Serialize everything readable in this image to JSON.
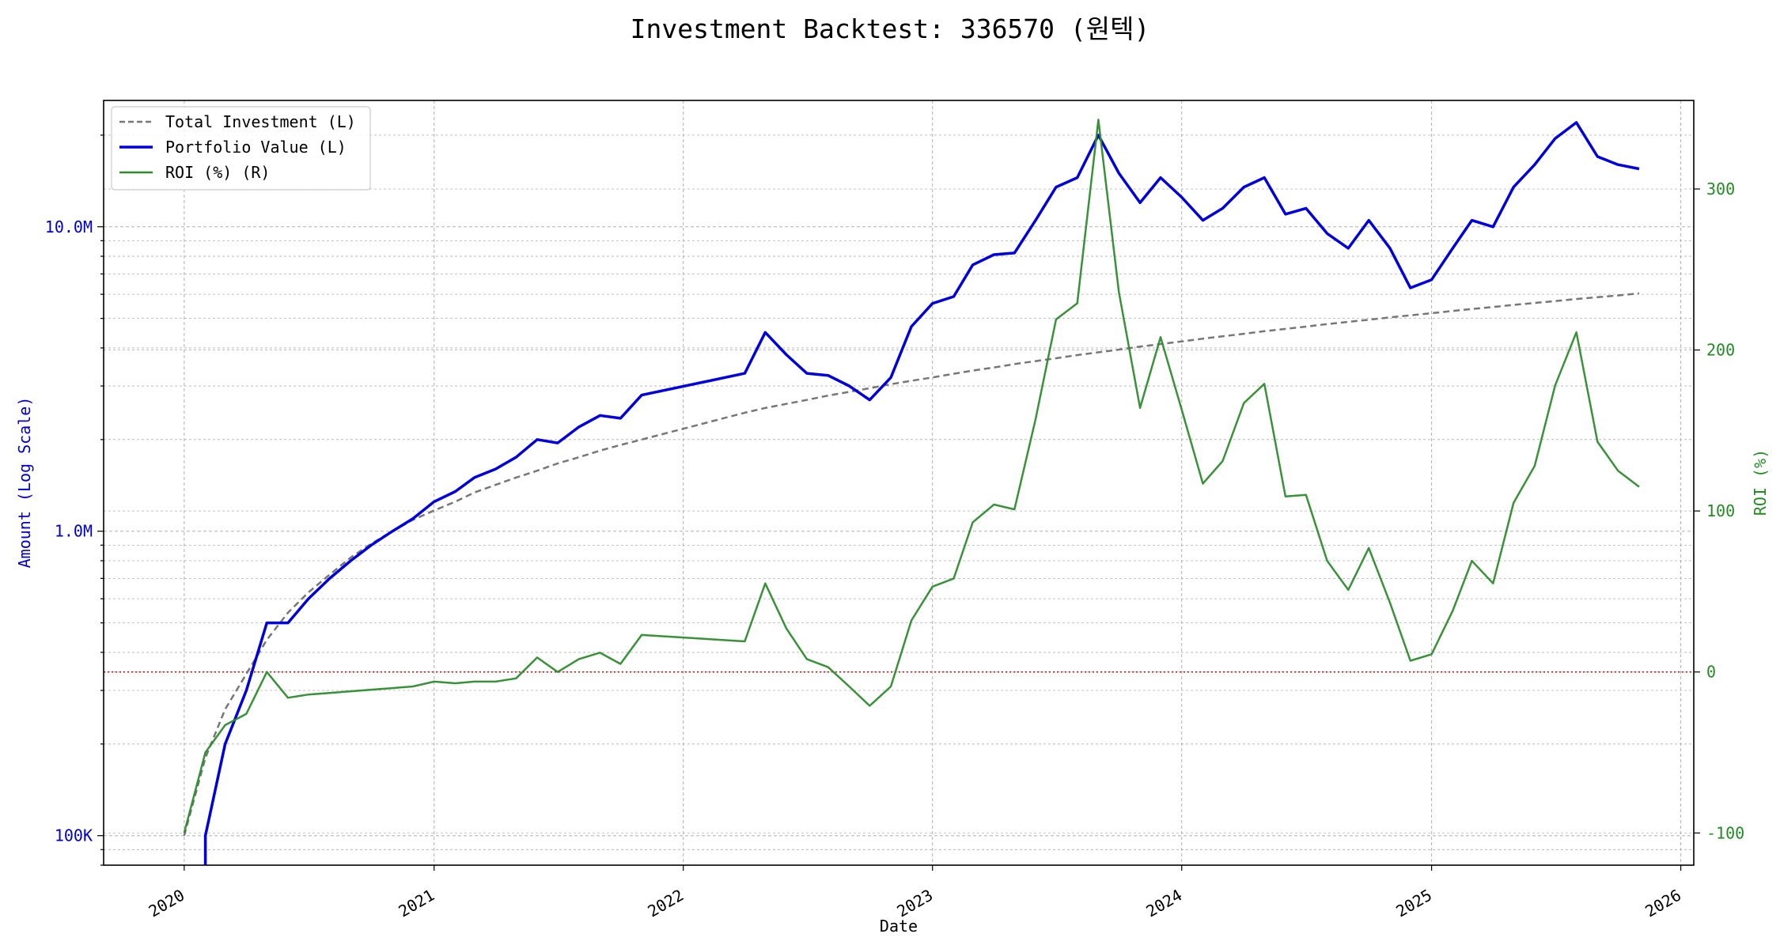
{
  "colors": {
    "portfolio": "#0000dd",
    "investment": "#777777",
    "roi": "#2e8b2e",
    "zero_line": "#b22222",
    "left_axis_text": "#0000cc",
    "right_axis_text": "#228b22",
    "grid": "#b0b0b0"
  },
  "chart_data": {
    "type": "line",
    "title": "Investment Backtest: 336570 (원텍)",
    "xlabel": "Date",
    "ylabel_left": "Amount (Log Scale)",
    "ylabel_right": "ROI (%)",
    "left_scale": "log",
    "left_ylim": [
      80000,
      26000000
    ],
    "right_ylim": [
      -120,
      355
    ],
    "xlim": [
      "2019-09-05",
      "2026-01-20"
    ],
    "grid": true,
    "legend_position": "upper-left",
    "x_ticks": [
      "2020",
      "2021",
      "2022",
      "2023",
      "2024",
      "2025",
      "2026"
    ],
    "left_ticks": [
      "100K",
      "1.0M",
      "10.0M"
    ],
    "right_ticks": [
      "-100",
      "0",
      "100",
      "200",
      "300"
    ],
    "x": [
      "2020-01",
      "2020-02",
      "2020-03",
      "2020-04",
      "2020-05",
      "2020-06",
      "2020-07",
      "2020-08",
      "2020-09",
      "2020-10",
      "2020-11",
      "2020-12",
      "2021-01",
      "2021-02",
      "2021-03",
      "2021-04",
      "2021-05",
      "2021-06",
      "2021-07",
      "2021-08",
      "2021-09",
      "2021-10",
      "2021-11",
      "2022-04",
      "2022-05",
      "2022-06",
      "2022-07",
      "2022-08",
      "2022-09",
      "2022-10",
      "2022-11",
      "2022-12",
      "2023-01",
      "2023-02",
      "2023-03",
      "2023-04",
      "2023-05",
      "2023-06",
      "2023-07",
      "2023-08",
      "2023-09",
      "2023-10",
      "2023-11",
      "2023-12",
      "2024-01",
      "2024-02",
      "2024-03",
      "2024-04",
      "2024-05",
      "2024-06",
      "2024-07",
      "2024-08",
      "2024-09",
      "2024-10",
      "2024-11",
      "2024-12",
      "2025-01",
      "2025-02",
      "2025-03",
      "2025-04",
      "2025-05",
      "2025-06",
      "2025-07",
      "2025-08",
      "2025-09",
      "2025-10",
      "2025-11"
    ],
    "series": [
      {
        "name": "Total Investment (L)",
        "axis": "left",
        "style": "dashed",
        "values": [
          100000,
          180000,
          260000,
          340000,
          440000,
          540000,
          630000,
          720000,
          820000,
          910000,
          1000000,
          1090000,
          1170000,
          1250000,
          1340000,
          1420000,
          1500000,
          1580000,
          1670000,
          1750000,
          1840000,
          1920000,
          2000000,
          2450000,
          2540000,
          2620000,
          2700000,
          2790000,
          2870000,
          2950000,
          3040000,
          3120000,
          3200000,
          3290000,
          3370000,
          3450000,
          3540000,
          3620000,
          3700000,
          3790000,
          3870000,
          3950000,
          4040000,
          4120000,
          4200000,
          4290000,
          4370000,
          4450000,
          4540000,
          4620000,
          4700000,
          4790000,
          4870000,
          4950000,
          5040000,
          5120000,
          5200000,
          5290000,
          5370000,
          5450000,
          5540000,
          5620000,
          5700000,
          5790000,
          5870000,
          5950000,
          6040000
        ]
      },
      {
        "name": "Portfolio Value (L)",
        "axis": "left",
        "style": "solid",
        "values": [
          null,
          100000,
          200000,
          300000,
          500000,
          500000,
          600000,
          700000,
          800000,
          900000,
          1000000,
          1100000,
          1250000,
          1350000,
          1500000,
          1600000,
          1750000,
          2000000,
          1950000,
          2200000,
          2400000,
          2350000,
          2800000,
          3300000,
          4500000,
          3800000,
          3300000,
          3250000,
          3000000,
          2700000,
          3200000,
          4700000,
          5600000,
          5900000,
          7500000,
          8100000,
          8200000,
          10500000,
          13500000,
          14500000,
          20000000,
          15000000,
          12000000,
          14500000,
          12500000,
          10500000,
          11500000,
          13500000,
          14500000,
          11000000,
          11500000,
          9500000,
          8500000,
          10500000,
          8500000,
          6300000,
          6700000,
          8500000,
          10500000,
          10000000,
          13500000,
          16000000,
          19500000,
          22000000,
          17000000,
          16000000,
          15500000
        ]
      },
      {
        "name": "ROI (%) (R)",
        "axis": "right",
        "style": "solid",
        "values": [
          -100,
          -50,
          -33,
          -26,
          0,
          -16,
          -14,
          -13,
          -12,
          -11,
          -10,
          -9,
          -6,
          -7,
          -6,
          -6,
          -4,
          9,
          0,
          8,
          12,
          5,
          23,
          19,
          55,
          27,
          8,
          3,
          -9,
          -21,
          -9,
          32,
          53,
          58,
          93,
          104,
          101,
          157,
          219,
          229,
          343,
          236,
          164,
          208,
          163,
          117,
          131,
          167,
          179,
          109,
          110,
          69,
          51,
          77,
          43,
          7,
          11,
          38,
          69,
          55,
          105,
          128,
          178,
          211,
          143,
          125,
          115
        ]
      }
    ]
  }
}
